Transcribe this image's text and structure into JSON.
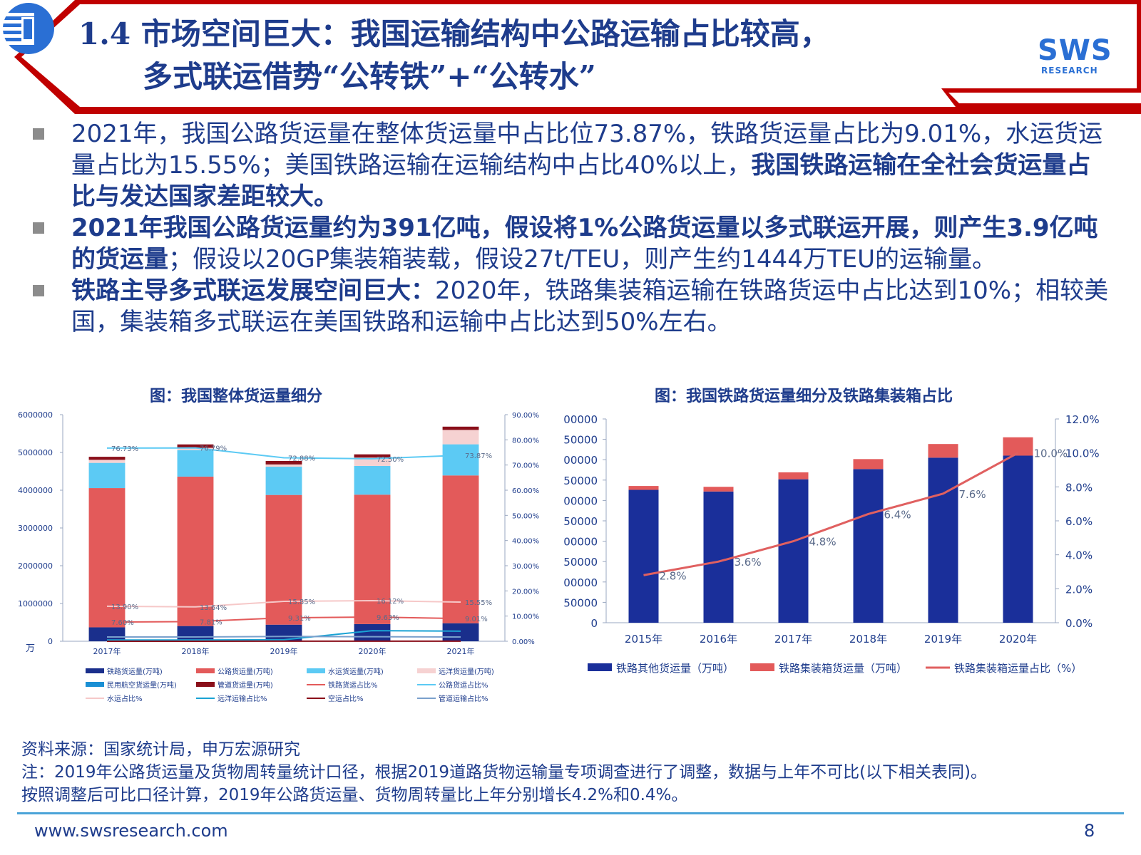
{
  "header": {
    "title_line1": "1.4 市场空间巨大：我国运输结构中公路运输占比较高，",
    "title_line2": "多式联运借势“公转铁”+“公转水”",
    "logo_text": "SWS",
    "logo_sub": "RESEARCH",
    "accent_color": "#c00000",
    "title_color": "#1e3c8c"
  },
  "bullets": [
    {
      "parts": [
        {
          "text": "2021年，我国公路货运量在整体货运量中占比位73.87%，铁路货运量占比为9.01%，水运货运量占比为15.55%；美国铁路运输在运输结构中占比40%以上，",
          "bold": false
        },
        {
          "text": "我国铁路运输在全社会货运量占比与发达国家差距较大。",
          "bold": true
        }
      ]
    },
    {
      "parts": [
        {
          "text": "2021年我国公路货运量约为391亿吨，假设将1%公路货运量以多式联运开展，则产生3.9亿吨的货运量",
          "bold": true
        },
        {
          "text": "；假设以20GP集装箱装载，假设27t/TEU，则产生约1444万TEU的运输量。",
          "bold": false
        }
      ]
    },
    {
      "parts": [
        {
          "text": "铁路主导多式联运发展空间巨大：",
          "bold": true
        },
        {
          "text": "2020年，铁路集装箱运输在铁路货运中占比达到10%；相较美国，集装箱多式联运在美国铁路和运输中占比达到50%左右。",
          "bold": false
        }
      ]
    }
  ],
  "chart_titles": {
    "left": "图：我国整体货运量细分",
    "right": "图：我国铁路货运量细分及铁路集装箱占比"
  },
  "chart_data": [
    {
      "type": "bar",
      "stacked": true,
      "title": "图：我国整体货运量细分",
      "unit_label": "万",
      "categories": [
        "2017年",
        "2018年",
        "2019年",
        "2020年",
        "2021年"
      ],
      "ylim": [
        0,
        6000000
      ],
      "yticks": [
        "0",
        "1000000",
        "2000000",
        "3000000",
        "4000000",
        "5000000",
        "6000000"
      ],
      "y2lim": [
        0,
        90
      ],
      "y2ticks": [
        "0.00%",
        "10.00%",
        "20.00%",
        "30.00%",
        "40.00%",
        "50.00%",
        "60.00%",
        "70.00%",
        "80.00%",
        "90.00%"
      ],
      "series": [
        {
          "name": "铁路货运量(万吨)",
          "color": "#1a2f8c",
          "values": [
            368865,
            402631,
            438904,
            455236,
            477371
          ]
        },
        {
          "name": "公路货运量(万吨)",
          "color": "#e35a5a",
          "values": [
            3686858,
            3956871,
            3435480,
            3426413,
            3913889
          ]
        },
        {
          "name": "水运货运量(万吨)",
          "color": "#5ccaf4",
          "values": [
            667846,
            702684,
            747225,
            761630,
            823973
          ]
        },
        {
          "name": "远洋货运量(万吨)",
          "color": "#f6d2d2",
          "values": [
            80000,
            60000,
            60000,
            220000,
            380000
          ]
        },
        {
          "name": "民用航空货运量(万吨)",
          "color": "#1a8fd4",
          "values": [
            706,
            739,
            753,
            677,
            732
          ]
        },
        {
          "name": "管道货运量(万吨)",
          "color": "#8a0f1a",
          "values": [
            80576,
            89807,
            91261,
            85623,
            87000
          ]
        }
      ],
      "lines": [
        {
          "name": "铁路货运占比%",
          "color": "#e35a5a",
          "values": [
            7.6,
            7.81,
            9.31,
            9.63,
            9.01
          ],
          "labels": [
            "7.60%",
            "7.81%",
            "9.31%",
            "9.63%",
            "9.01%"
          ]
        },
        {
          "name": "公路货运占比%",
          "color": "#5ccaf4",
          "values": [
            76.73,
            76.79,
            72.88,
            72.5,
            73.87
          ],
          "labels": [
            "76.73%",
            "76.79%",
            "72.88%",
            "72.50%",
            "73.87%"
          ]
        },
        {
          "name": "水运占比%",
          "color": "#f6c8c8",
          "values": [
            13.9,
            13.64,
            15.85,
            16.12,
            15.55
          ],
          "labels": [
            "13.90%",
            "13.64%",
            "15.85%",
            "16.12%",
            "15.55%"
          ]
        },
        {
          "name": "远洋运输占比%",
          "color": "#1aa3d4",
          "values": [
            0.5,
            0.5,
            0.6,
            4.2,
            4.0
          ],
          "labels": []
        },
        {
          "name": "空运占比%",
          "color": "#8a0f1a",
          "values": [
            0.01,
            0.01,
            0.02,
            0.02,
            0.02
          ],
          "labels": []
        },
        {
          "name": "管道运输占比%",
          "color": "#7aa0cc",
          "values": [
            1.7,
            1.7,
            1.9,
            1.8,
            1.7
          ],
          "labels": []
        }
      ],
      "legend": [
        {
          "name": "铁路货运量(万吨)",
          "color": "#1a2f8c",
          "kind": "bar"
        },
        {
          "name": "公路货运量(万吨)",
          "color": "#e35a5a",
          "kind": "bar"
        },
        {
          "name": "水运货运量(万吨)",
          "color": "#5ccaf4",
          "kind": "bar"
        },
        {
          "name": "远洋货运量(万吨)",
          "color": "#f6d2d2",
          "kind": "bar"
        },
        {
          "name": "民用航空货运量(万吨)",
          "color": "#1a8fd4",
          "kind": "bar"
        },
        {
          "name": "管道货运量(万吨)",
          "color": "#8a0f1a",
          "kind": "bar"
        },
        {
          "name": "铁路货运占比%",
          "color": "#e35a5a",
          "kind": "line"
        },
        {
          "name": "公路货运占比%",
          "color": "#5ccaf4",
          "kind": "line"
        },
        {
          "name": "水运占比%",
          "color": "#f6c8c8",
          "kind": "line"
        },
        {
          "name": "远洋运输占比%",
          "color": "#1aa3d4",
          "kind": "line"
        },
        {
          "name": "空运占比%",
          "color": "#8a0f1a",
          "kind": "line"
        },
        {
          "name": "管道运输占比%",
          "color": "#7aa0cc",
          "kind": "line"
        }
      ]
    },
    {
      "type": "bar",
      "stacked": true,
      "title": "图：我国铁路货运量细分及铁路集装箱占比",
      "categories": [
        "2015年",
        "2016年",
        "2017年",
        "2018年",
        "2019年",
        "2020年"
      ],
      "ylim": [
        0,
        500000
      ],
      "yticks": [
        "0",
        "50000",
        "100000",
        "150000",
        "200000",
        "250000",
        "300000",
        "350000",
        "400000",
        "450000",
        "500000"
      ],
      "y2lim": [
        0,
        12
      ],
      "y2ticks": [
        "0.0%",
        "2.0%",
        "4.0%",
        "6.0%",
        "8.0%",
        "10.0%",
        "12.0%"
      ],
      "series": [
        {
          "name": "铁路其他货运量（万吨）",
          "color": "#1a2f9a",
          "values": [
            326000,
            322000,
            352000,
            377000,
            405000,
            410000
          ]
        },
        {
          "name": "铁路集装箱货运量（万吨）",
          "color": "#e35a5a",
          "values": [
            9500,
            11500,
            17000,
            24500,
            33500,
            45000
          ]
        }
      ],
      "lines": [
        {
          "name": "铁路集装箱运量占比（%）",
          "color": "#e06060",
          "values": [
            2.8,
            3.6,
            4.8,
            6.4,
            7.6,
            10.0
          ],
          "labels": [
            "2.8%",
            "3.6%",
            "4.8%",
            "6.4%",
            "7.6%",
            "10.0%"
          ]
        }
      ],
      "legend": [
        {
          "name": "铁路其他货运量（万吨）",
          "color": "#1a2f9a",
          "kind": "bar"
        },
        {
          "name": "铁路集装箱货运量（万吨）",
          "color": "#e35a5a",
          "kind": "bar"
        },
        {
          "name": "铁路集装箱运量占比（%）",
          "color": "#e06060",
          "kind": "line"
        }
      ]
    }
  ],
  "source": {
    "line1": "资料来源：国家统计局，申万宏源研究",
    "line2": "注：2019年公路货运量及货物周转量统计口径，根据2019道路货物运输量专项调查进行了调整，数据与上年不可比(以下相关表同)。",
    "line3": "按照调整后可比口径计算，2019年公路货运量、货物周转量比上年分别增长4.2%和0.4%。"
  },
  "footer": {
    "url": "www.swsresearch.com",
    "page": "8"
  }
}
